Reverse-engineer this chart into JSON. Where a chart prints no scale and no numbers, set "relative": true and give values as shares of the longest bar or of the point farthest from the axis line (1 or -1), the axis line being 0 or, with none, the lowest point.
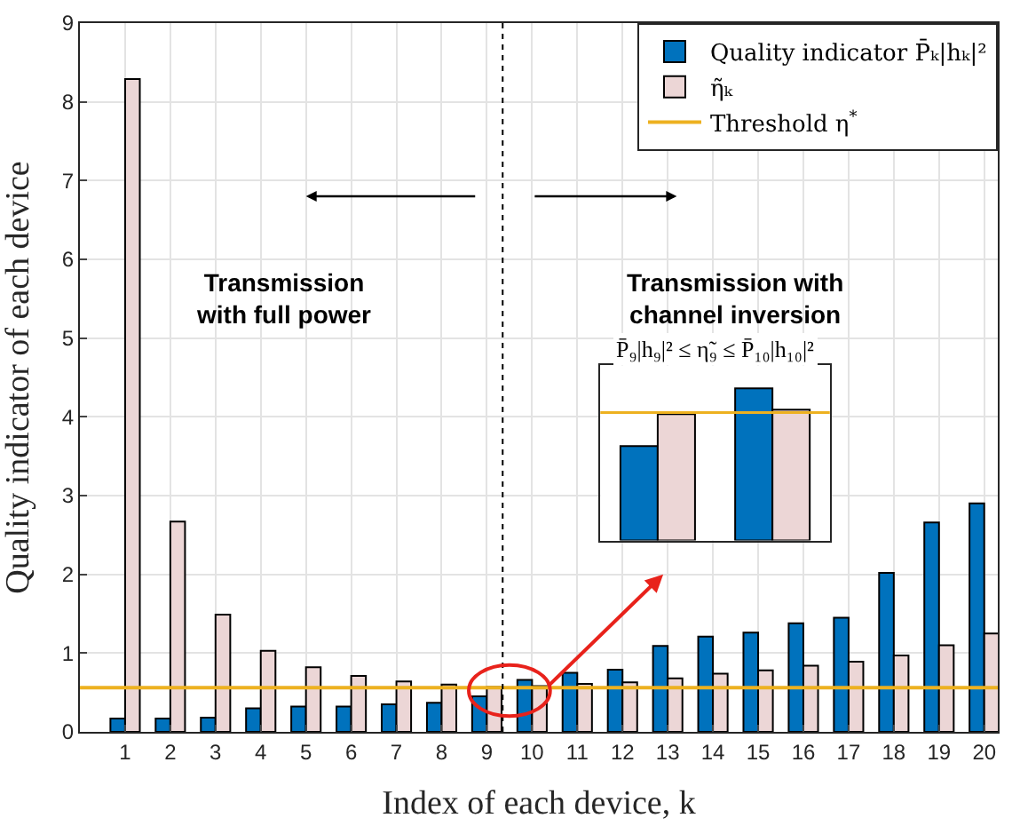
{
  "chart_data": [
    {
      "type": "bar",
      "xlabel": "Index of each device, k",
      "ylabel": "Quality indicator of each device",
      "x": [
        1,
        2,
        3,
        4,
        5,
        6,
        7,
        8,
        9,
        10,
        11,
        12,
        13,
        14,
        15,
        16,
        17,
        18,
        19,
        20
      ],
      "series": [
        {
          "name": "Quality indicator P̄ₖ|hₖ|²",
          "color": "#0072bd",
          "values": [
            0.17,
            0.17,
            0.18,
            0.3,
            0.32,
            0.32,
            0.35,
            0.37,
            0.45,
            0.66,
            0.75,
            0.79,
            1.09,
            1.21,
            1.26,
            1.38,
            1.45,
            2.02,
            2.66,
            2.9
          ]
        },
        {
          "name": "η̃ₖ",
          "color": "#ecd6d6",
          "values": [
            8.29,
            2.67,
            1.49,
            1.03,
            0.82,
            0.71,
            0.64,
            0.6,
            0.57,
            0.58,
            0.61,
            0.63,
            0.68,
            0.74,
            0.78,
            0.84,
            0.89,
            0.97,
            1.1,
            1.25
          ]
        },
        {
          "name": "Threshold η$^{*}$",
          "type": "line",
          "color": "#edb120",
          "x": [
            0,
            20.3
          ],
          "values": [
            0.56,
            0.56
          ]
        }
      ],
      "xlim": [
        0,
        20.3
      ],
      "xticks": [
        1,
        2,
        3,
        4,
        5,
        6,
        7,
        8,
        9,
        10,
        11,
        12,
        13,
        14,
        15,
        16,
        17,
        18,
        19,
        20
      ],
      "ylim": [
        0,
        9
      ],
      "yticks": [
        0,
        1,
        2,
        3,
        4,
        5,
        6,
        7,
        8,
        9
      ],
      "ref_lines": [
        {
          "axis": "x",
          "value": 9.35,
          "color": "#000000",
          "line_style": "dotted"
        }
      ],
      "annotations": [
        "Transmission\nwith full power",
        "Transmission with\nchannel inversion"
      ],
      "grid": true,
      "legend": "top right"
    },
    {
      "type": "bar",
      "title": "P̄₉|h₉|² ≤ η̃₉ ≤ P̄₁₀|h₁₀|²",
      "categories": [
        null,
        null
      ],
      "relative": true,
      "series": [
        {
          "color": "#0072bd",
          "values": [
            0.62,
            1
          ]
        },
        {
          "color": "#ecd6d6",
          "values": [
            0.83,
            0.86
          ]
        }
      ],
      "ref_lines": [
        {
          "axis": "y",
          "value": 0.84,
          "color": "#edb120"
        }
      ]
    }
  ]
}
